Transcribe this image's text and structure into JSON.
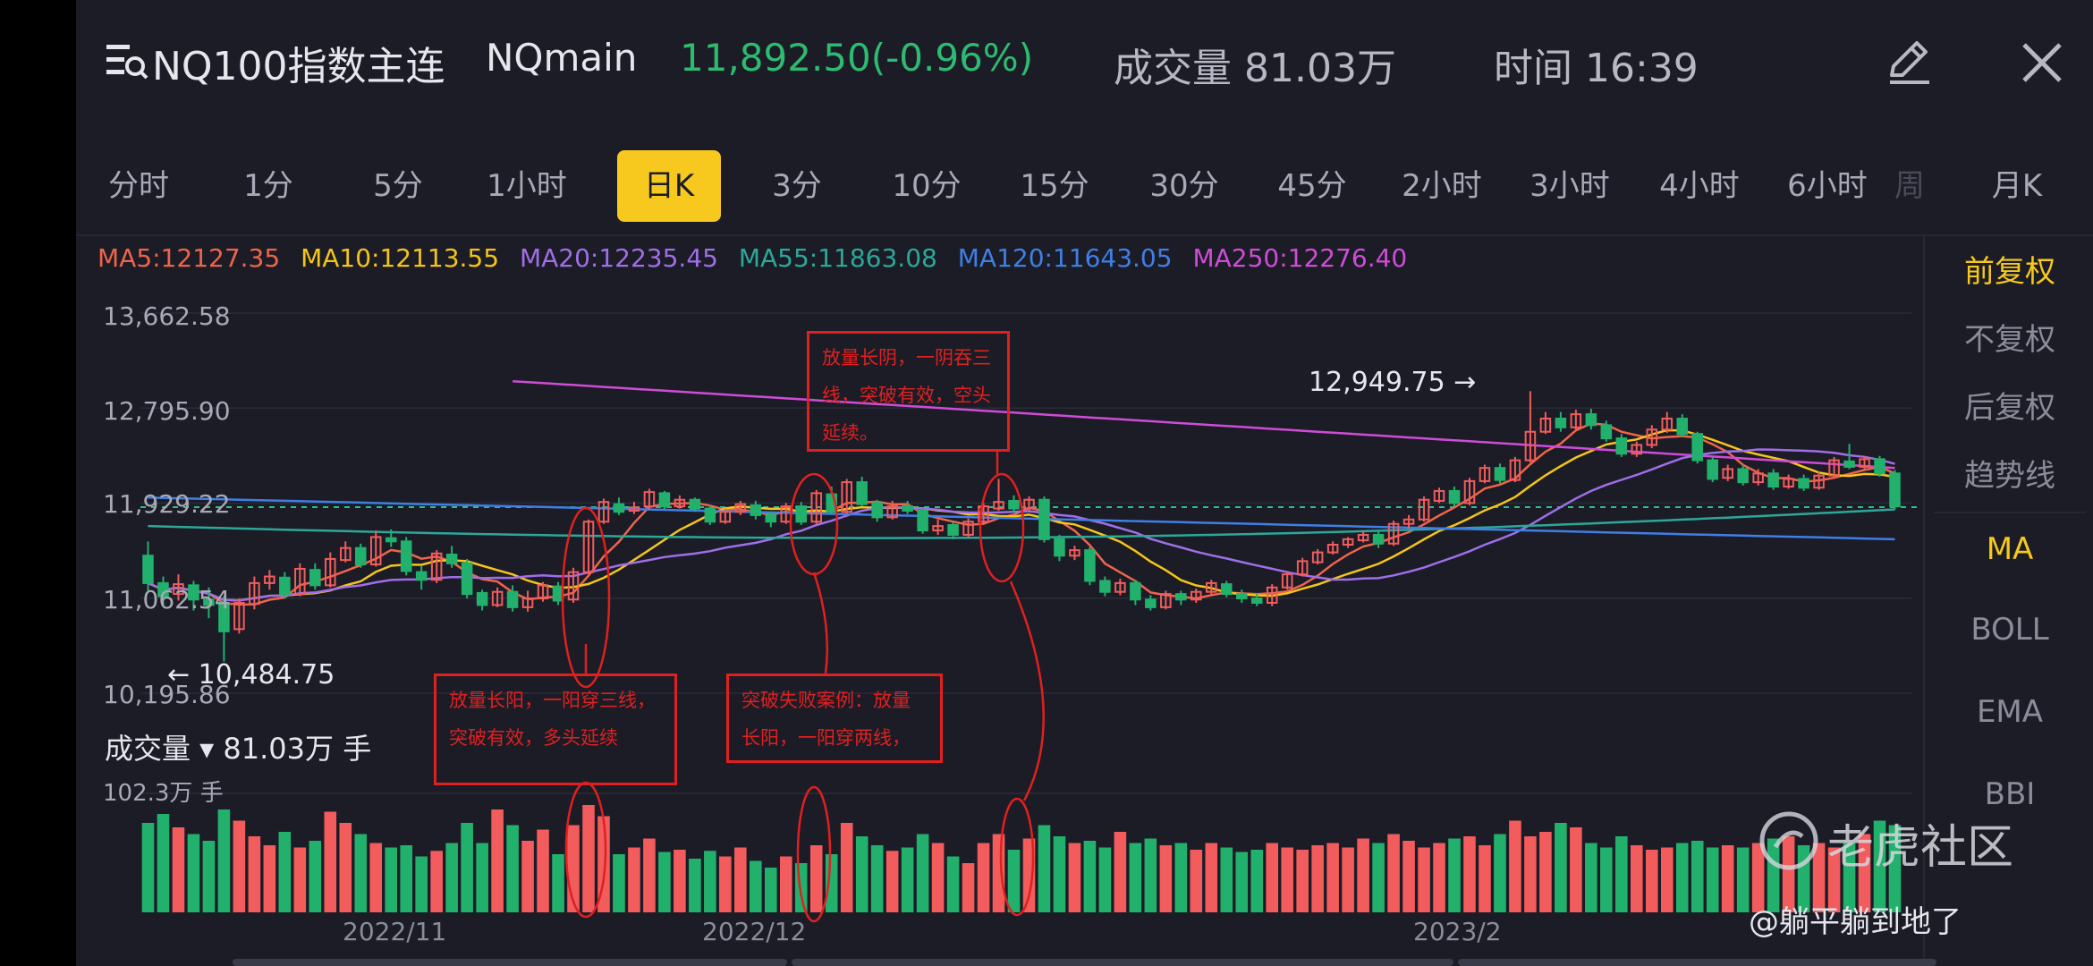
{
  "header": {
    "title": "NQ100指数主连",
    "code": "NQmain",
    "price": "11,892.50(-0.96%)",
    "volume": "成交量 81.03万",
    "time": "时间 16:39"
  },
  "tabs": [
    "分时",
    "1分",
    "5分",
    "1小时",
    "日K",
    "3分",
    "10分",
    "15分",
    "30分",
    "45分",
    "2小时",
    "3小时",
    "4小时",
    "6小时",
    "周",
    "月K"
  ],
  "active_tab": "日K",
  "ma": {
    "ma5": "MA5:12127.35",
    "ma10": "MA10:12113.55",
    "ma20": "MA20:12235.45",
    "ma55": "MA55:11863.08",
    "ma120": "MA120:11643.05",
    "ma250": "MA250:12276.40"
  },
  "colors": {
    "ma5": "#f0644a",
    "ma10": "#f5c518",
    "ma20": "#a06ee8",
    "ma55": "#2ca89a",
    "ma120": "#3f7fe6",
    "ma250": "#d04cd8",
    "up": "#f25c5c",
    "down": "#22b16d",
    "accent": "#f7c81e"
  },
  "right_panel": {
    "adj_items": [
      "前复权",
      "不复权",
      "后复权",
      "趋势线"
    ],
    "indicators": [
      "MA",
      "BOLL",
      "EMA",
      "BBI"
    ]
  },
  "y_axis": [
    "13,662.58",
    "12,795.90",
    "11,929.22",
    "11,062.54",
    "10,195.86"
  ],
  "x_axis": [
    "2022/11",
    "2022/12",
    "2023/2"
  ],
  "high_label": "12,949.75 →",
  "low_label": "← 10,484.75",
  "volume_header": "成交量 ▾ 81.03万 手",
  "volume_max": "102.3万 手",
  "annotations": {
    "note1": "放量长阴，一阴吞三线，突破有效，空头延续。",
    "note2": "放量长阳，一阳穿三线，突破有效，多头延续",
    "note3": "突破失败案例：放量长阳，一阳穿两线，"
  },
  "watermark": "老虎社区",
  "username": "@躺平躺到地了",
  "chart_data": {
    "type": "candlestick",
    "y_range": [
      10195.86,
      13662.58
    ],
    "last_price": 11892.5,
    "high": 12949.75,
    "low": 10484.75,
    "candles": [
      [
        11450,
        11200,
        11580,
        11130,
        true
      ],
      [
        11200,
        11080,
        11260,
        10980,
        true
      ],
      [
        11100,
        11190,
        11280,
        11040,
        false
      ],
      [
        11180,
        11050,
        11220,
        10950,
        true
      ],
      [
        11050,
        11000,
        11160,
        10880,
        true
      ],
      [
        11020,
        10760,
        11080,
        10485,
        true
      ],
      [
        10780,
        11020,
        11060,
        10740,
        false
      ],
      [
        11010,
        11200,
        11260,
        10960,
        false
      ],
      [
        11200,
        11260,
        11320,
        11140,
        false
      ],
      [
        11250,
        11100,
        11300,
        11060,
        true
      ],
      [
        11100,
        11330,
        11380,
        11080,
        false
      ],
      [
        11320,
        11180,
        11380,
        11140,
        true
      ],
      [
        11180,
        11420,
        11480,
        11160,
        false
      ],
      [
        11410,
        11520,
        11580,
        11390,
        false
      ],
      [
        11520,
        11370,
        11560,
        11340,
        true
      ],
      [
        11370,
        11620,
        11680,
        11350,
        false
      ],
      [
        11610,
        11580,
        11690,
        11530,
        true
      ],
      [
        11580,
        11310,
        11620,
        11270,
        true
      ],
      [
        11300,
        11230,
        11360,
        11140,
        true
      ],
      [
        11230,
        11470,
        11500,
        11200,
        false
      ],
      [
        11460,
        11380,
        11540,
        11340,
        true
      ],
      [
        11380,
        11100,
        11420,
        11060,
        true
      ],
      [
        11110,
        11000,
        11140,
        10950,
        true
      ],
      [
        11000,
        11120,
        11160,
        10980,
        false
      ],
      [
        11120,
        10980,
        11180,
        10940,
        true
      ],
      [
        10980,
        11060,
        11130,
        10940,
        false
      ],
      [
        11060,
        11180,
        11210,
        11030,
        false
      ],
      [
        11170,
        11040,
        11210,
        11000,
        true
      ],
      [
        11050,
        11300,
        11340,
        11020,
        false
      ],
      [
        11300,
        11760,
        11780,
        11280,
        false
      ],
      [
        11760,
        11940,
        11970,
        11740,
        false
      ],
      [
        11920,
        11850,
        11980,
        11820,
        true
      ],
      [
        11860,
        11890,
        11940,
        11830,
        false
      ],
      [
        11900,
        12030,
        12060,
        11870,
        false
      ],
      [
        12020,
        11900,
        12040,
        11870,
        true
      ],
      [
        11900,
        11960,
        12000,
        11880,
        false
      ],
      [
        11960,
        11880,
        11980,
        11850,
        true
      ],
      [
        11880,
        11760,
        11910,
        11730,
        true
      ],
      [
        11760,
        11850,
        11880,
        11740,
        false
      ],
      [
        11850,
        11920,
        11950,
        11820,
        false
      ],
      [
        11910,
        11820,
        11950,
        11780,
        true
      ],
      [
        11820,
        11760,
        11850,
        11710,
        true
      ],
      [
        11760,
        11900,
        11930,
        11740,
        false
      ],
      [
        11900,
        11760,
        11940,
        11730,
        true
      ],
      [
        11760,
        12020,
        12050,
        11740,
        false
      ],
      [
        12010,
        11850,
        12080,
        11830,
        true
      ],
      [
        11850,
        12120,
        12150,
        11830,
        false
      ],
      [
        12120,
        11920,
        12170,
        11900,
        true
      ],
      [
        11930,
        11800,
        11960,
        11760,
        true
      ],
      [
        11800,
        11900,
        11950,
        11780,
        false
      ],
      [
        11900,
        11860,
        11950,
        11830,
        true
      ],
      [
        11860,
        11680,
        11880,
        11650,
        true
      ],
      [
        11680,
        11720,
        11780,
        11640,
        false
      ],
      [
        11730,
        11640,
        11760,
        11600,
        true
      ],
      [
        11640,
        11760,
        11790,
        11620,
        false
      ],
      [
        11760,
        11900,
        11930,
        11740,
        false
      ],
      [
        11880,
        11940,
        12150,
        11860,
        false
      ],
      [
        11950,
        11880,
        12000,
        11840,
        true
      ],
      [
        11880,
        11960,
        11990,
        11850,
        false
      ],
      [
        11960,
        11600,
        11990,
        11570,
        true
      ],
      [
        11600,
        11450,
        11640,
        11400,
        true
      ],
      [
        11450,
        11500,
        11540,
        11410,
        false
      ],
      [
        11500,
        11220,
        11530,
        11180,
        true
      ],
      [
        11220,
        11120,
        11260,
        11080,
        true
      ],
      [
        11120,
        11200,
        11240,
        11090,
        false
      ],
      [
        11200,
        11050,
        11230,
        11000,
        true
      ],
      [
        11050,
        10980,
        11090,
        10950,
        true
      ],
      [
        10980,
        11100,
        11130,
        10960,
        false
      ],
      [
        11100,
        11050,
        11130,
        11000,
        true
      ],
      [
        11050,
        11120,
        11150,
        11020,
        false
      ],
      [
        11120,
        11200,
        11230,
        11090,
        false
      ],
      [
        11190,
        11100,
        11220,
        11070,
        true
      ],
      [
        11100,
        11060,
        11140,
        11020,
        true
      ],
      [
        11060,
        11020,
        11110,
        10990,
        true
      ],
      [
        11020,
        11160,
        11190,
        10990,
        false
      ],
      [
        11160,
        11280,
        11310,
        11140,
        false
      ],
      [
        11280,
        11400,
        11430,
        11260,
        false
      ],
      [
        11390,
        11480,
        11510,
        11370,
        false
      ],
      [
        11480,
        11550,
        11580,
        11460,
        false
      ],
      [
        11550,
        11600,
        11620,
        11520,
        false
      ],
      [
        11590,
        11640,
        11670,
        11570,
        false
      ],
      [
        11640,
        11560,
        11680,
        11520,
        true
      ],
      [
        11560,
        11740,
        11770,
        11540,
        false
      ],
      [
        11740,
        11780,
        11820,
        11700,
        false
      ],
      [
        11780,
        11960,
        11990,
        11760,
        false
      ],
      [
        11950,
        12040,
        12070,
        11930,
        false
      ],
      [
        12040,
        11930,
        12080,
        11900,
        true
      ],
      [
        11930,
        12130,
        12160,
        11910,
        false
      ],
      [
        12130,
        12250,
        12280,
        12110,
        false
      ],
      [
        12250,
        12140,
        12290,
        12110,
        true
      ],
      [
        12140,
        12320,
        12350,
        12120,
        false
      ],
      [
        12320,
        12580,
        12950,
        12300,
        false
      ],
      [
        12580,
        12700,
        12760,
        12560,
        false
      ],
      [
        12700,
        12620,
        12760,
        12580,
        true
      ],
      [
        12620,
        12740,
        12780,
        12600,
        false
      ],
      [
        12740,
        12640,
        12790,
        12600,
        true
      ],
      [
        12640,
        12520,
        12680,
        12490,
        true
      ],
      [
        12520,
        12380,
        12560,
        12350,
        true
      ],
      [
        12380,
        12460,
        12490,
        12350,
        false
      ],
      [
        12460,
        12600,
        12640,
        12430,
        false
      ],
      [
        12600,
        12700,
        12760,
        12570,
        false
      ],
      [
        12700,
        12560,
        12740,
        12530,
        true
      ],
      [
        12560,
        12320,
        12580,
        12290,
        true
      ],
      [
        12320,
        12150,
        12350,
        12120,
        true
      ],
      [
        12160,
        12240,
        12280,
        12130,
        false
      ],
      [
        12240,
        12120,
        12280,
        12090,
        true
      ],
      [
        12120,
        12200,
        12240,
        12090,
        false
      ],
      [
        12200,
        12080,
        12240,
        12050,
        true
      ],
      [
        12080,
        12150,
        12190,
        12060,
        false
      ],
      [
        12150,
        12070,
        12190,
        12040,
        true
      ],
      [
        12070,
        12180,
        12220,
        12050,
        false
      ],
      [
        12180,
        12320,
        12350,
        12160,
        false
      ],
      [
        12310,
        12260,
        12470,
        12240,
        true
      ],
      [
        12260,
        12330,
        12360,
        12230,
        false
      ],
      [
        12330,
        12200,
        12360,
        12170,
        true
      ],
      [
        12200,
        11900,
        12230,
        11870,
        true
      ]
    ],
    "volume_ratio": [
      0.8,
      0.88,
      0.76,
      0.7,
      0.64,
      0.92,
      0.82,
      0.68,
      0.6,
      0.72,
      0.58,
      0.64,
      0.9,
      0.8,
      0.7,
      0.62,
      0.58,
      0.6,
      0.5,
      0.55,
      0.62,
      0.8,
      0.62,
      0.92,
      0.78,
      0.64,
      0.74,
      0.52,
      0.78,
      0.96,
      0.86,
      0.52,
      0.58,
      0.66,
      0.54,
      0.56,
      0.48,
      0.55,
      0.5,
      0.58,
      0.46,
      0.4,
      0.5,
      0.44,
      0.6,
      0.52,
      0.8,
      0.68,
      0.6,
      0.55,
      0.58,
      0.7,
      0.62,
      0.5,
      0.44,
      0.62,
      0.7,
      0.56,
      0.66,
      0.78,
      0.68,
      0.62,
      0.64,
      0.58,
      0.72,
      0.62,
      0.66,
      0.6,
      0.62,
      0.56,
      0.62,
      0.58,
      0.54,
      0.56,
      0.62,
      0.58,
      0.56,
      0.6,
      0.62,
      0.58,
      0.66,
      0.62,
      0.7,
      0.64,
      0.58,
      0.62,
      0.66,
      0.68,
      0.6,
      0.7,
      0.82,
      0.68,
      0.72,
      0.8,
      0.76,
      0.62,
      0.58,
      0.68,
      0.6,
      0.56,
      0.58,
      0.62,
      0.64,
      0.58,
      0.6,
      0.58,
      0.62,
      0.66,
      0.68,
      0.6,
      0.62,
      0.58,
      0.62,
      0.7,
      0.82,
      0.78
    ]
  }
}
